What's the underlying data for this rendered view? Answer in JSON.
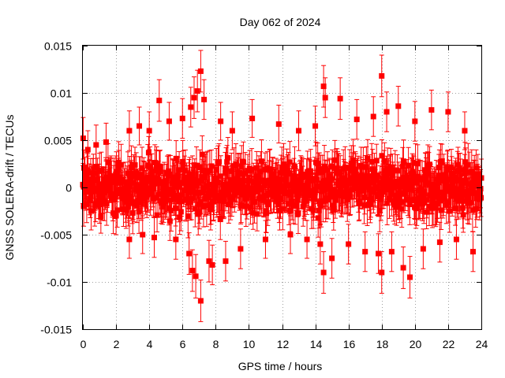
{
  "chart_data": {
    "type": "scatter",
    "title": "Day 062 of 2024",
    "xlabel": "GPS time / hours",
    "ylabel": "GNSS SOLERA-drift / TECUs",
    "xlim": [
      0,
      24
    ],
    "ylim": [
      -0.015,
      0.015
    ],
    "xticks": [
      "0",
      "2",
      "4",
      "6",
      "8",
      "10",
      "12",
      "14",
      "16",
      "18",
      "20",
      "22",
      "24"
    ],
    "yticks": [
      "0.015",
      "0.01",
      "0.005",
      "0",
      "-0.005",
      "-0.01",
      "-0.015"
    ],
    "grid": true,
    "legend": "none",
    "series": [
      {
        "marker": "filled-square",
        "error_bars": true,
        "color": "#ff0000",
        "points": [
          {
            "x": 0.0,
            "y": 0.0003,
            "err": 0.002
          },
          {
            "x": 0.02,
            "y": 0.0052,
            "err": 0.0022
          },
          {
            "x": 0.05,
            "y": -0.002,
            "err": 0.0021
          },
          {
            "x": 0.3,
            "y": 0.004,
            "err": 0.002
          },
          {
            "x": 0.5,
            "y": -0.0025,
            "err": 0.002
          },
          {
            "x": 0.8,
            "y": 0.0045,
            "err": 0.0021
          },
          {
            "x": 1.0,
            "y": -0.0018,
            "err": 0.002
          },
          {
            "x": 1.4,
            "y": 0.0048,
            "err": 0.002
          },
          {
            "x": 2.0,
            "y": -0.003,
            "err": 0.002
          },
          {
            "x": 2.8,
            "y": 0.006,
            "err": 0.0021
          },
          {
            "x": 2.8,
            "y": -0.0055,
            "err": 0.002
          },
          {
            "x": 3.4,
            "y": 0.0065,
            "err": 0.002
          },
          {
            "x": 3.6,
            "y": -0.005,
            "err": 0.002
          },
          {
            "x": 4.0,
            "y": 0.006,
            "err": 0.002
          },
          {
            "x": 4.3,
            "y": -0.0053,
            "err": 0.0021
          },
          {
            "x": 4.6,
            "y": 0.0092,
            "err": 0.0022
          },
          {
            "x": 5.2,
            "y": 0.007,
            "err": 0.002
          },
          {
            "x": 5.6,
            "y": -0.0055,
            "err": 0.0021
          },
          {
            "x": 6.0,
            "y": 0.0073,
            "err": 0.0021
          },
          {
            "x": 6.4,
            "y": -0.007,
            "err": 0.0022
          },
          {
            "x": 6.5,
            "y": 0.0085,
            "err": 0.0021
          },
          {
            "x": 6.6,
            "y": -0.0088,
            "err": 0.0022
          },
          {
            "x": 6.7,
            "y": 0.0095,
            "err": 0.0022
          },
          {
            "x": 6.8,
            "y": -0.0094,
            "err": 0.0023
          },
          {
            "x": 6.9,
            "y": 0.0102,
            "err": 0.0022
          },
          {
            "x": 7.1,
            "y": 0.0123,
            "err": 0.0022
          },
          {
            "x": 7.1,
            "y": -0.012,
            "err": 0.0022
          },
          {
            "x": 7.3,
            "y": 0.0093,
            "err": 0.0021
          },
          {
            "x": 7.6,
            "y": -0.0078,
            "err": 0.0022
          },
          {
            "x": 7.8,
            "y": -0.0082,
            "err": 0.0021
          },
          {
            "x": 8.3,
            "y": 0.007,
            "err": 0.002
          },
          {
            "x": 8.6,
            "y": -0.0078,
            "err": 0.0021
          },
          {
            "x": 9.0,
            "y": 0.006,
            "err": 0.002
          },
          {
            "x": 9.5,
            "y": -0.0065,
            "err": 0.0021
          },
          {
            "x": 10.2,
            "y": 0.0073,
            "err": 0.002
          },
          {
            "x": 11.0,
            "y": -0.0055,
            "err": 0.002
          },
          {
            "x": 11.8,
            "y": 0.0067,
            "err": 0.002
          },
          {
            "x": 12.5,
            "y": -0.005,
            "err": 0.002
          },
          {
            "x": 13.0,
            "y": 0.006,
            "err": 0.0021
          },
          {
            "x": 13.5,
            "y": -0.0055,
            "err": 0.002
          },
          {
            "x": 14.0,
            "y": 0.0065,
            "err": 0.0021
          },
          {
            "x": 14.3,
            "y": -0.006,
            "err": 0.0021
          },
          {
            "x": 14.5,
            "y": 0.0107,
            "err": 0.0022
          },
          {
            "x": 14.5,
            "y": -0.009,
            "err": 0.0022
          },
          {
            "x": 14.6,
            "y": 0.0095,
            "err": 0.0021
          },
          {
            "x": 15.0,
            "y": -0.0075,
            "err": 0.0021
          },
          {
            "x": 15.5,
            "y": 0.0094,
            "err": 0.0022
          },
          {
            "x": 16.0,
            "y": -0.006,
            "err": 0.0021
          },
          {
            "x": 16.5,
            "y": 0.0072,
            "err": 0.0021
          },
          {
            "x": 17.0,
            "y": -0.0068,
            "err": 0.0021
          },
          {
            "x": 17.5,
            "y": 0.0075,
            "err": 0.0021
          },
          {
            "x": 17.8,
            "y": -0.007,
            "err": 0.0021
          },
          {
            "x": 18.0,
            "y": 0.0118,
            "err": 0.0022
          },
          {
            "x": 18.0,
            "y": -0.009,
            "err": 0.0022
          },
          {
            "x": 18.3,
            "y": 0.008,
            "err": 0.0021
          },
          {
            "x": 18.6,
            "y": -0.0068,
            "err": 0.0021
          },
          {
            "x": 19.0,
            "y": 0.0086,
            "err": 0.0021
          },
          {
            "x": 19.3,
            "y": -0.0085,
            "err": 0.0022
          },
          {
            "x": 19.7,
            "y": -0.0095,
            "err": 0.0022
          },
          {
            "x": 20.0,
            "y": 0.007,
            "err": 0.0021
          },
          {
            "x": 20.5,
            "y": -0.0065,
            "err": 0.0021
          },
          {
            "x": 21.0,
            "y": 0.0082,
            "err": 0.0021
          },
          {
            "x": 21.5,
            "y": -0.0058,
            "err": 0.0021
          },
          {
            "x": 22.0,
            "y": 0.008,
            "err": 0.0021
          },
          {
            "x": 22.5,
            "y": -0.0055,
            "err": 0.0021
          },
          {
            "x": 23.0,
            "y": 0.006,
            "err": 0.002
          },
          {
            "x": 23.5,
            "y": -0.0068,
            "err": 0.0021
          },
          {
            "x": 24.0,
            "y": 0.001,
            "err": 0.002
          }
        ],
        "dense_band": {
          "half_width": 0.004,
          "typical_err": 0.002
        }
      }
    ]
  }
}
